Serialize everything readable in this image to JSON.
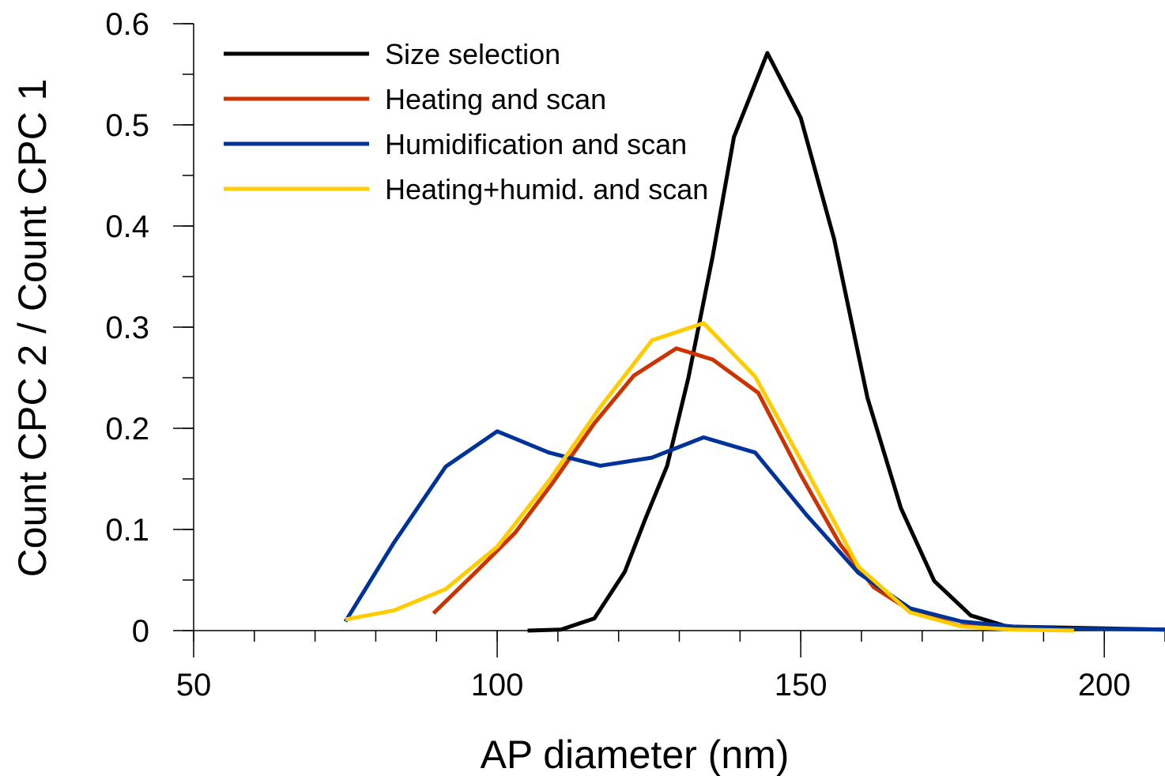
{
  "chart_data": {
    "type": "line",
    "title": "",
    "xlabel": "AP diameter (nm)",
    "ylabel": "Count CPC 2 / Count CPC 1",
    "xlim": [
      50,
      210
    ],
    "ylim": [
      0,
      0.6
    ],
    "x_ticks": [
      50,
      100,
      150,
      200
    ],
    "y_ticks": [
      0,
      0.1,
      0.2,
      0.3,
      0.4,
      0.5,
      0.6
    ],
    "x_minor_step": 10,
    "y_minor_step": 0.05,
    "grid": false,
    "legend_position": "top-left",
    "series": [
      {
        "name": "Size selection",
        "color": "#000000",
        "x": [
          105,
          110.5,
          116,
          121,
          124.5,
          128,
          131.5,
          135.5,
          139,
          144.5,
          150,
          155.5,
          161,
          166.5,
          172,
          178,
          184,
          210
        ],
        "y": [
          0.0,
          0.001,
          0.012,
          0.058,
          0.112,
          0.163,
          0.25,
          0.37,
          0.488,
          0.571,
          0.507,
          0.387,
          0.23,
          0.121,
          0.049,
          0.015,
          0.004,
          0.001
        ]
      },
      {
        "name": "Heating and scan",
        "color": "#CC3300",
        "x": [
          89.5,
          97,
          103,
          109,
          116,
          122.5,
          129.5,
          135.5,
          143,
          150,
          156.5,
          162,
          168,
          176,
          184,
          195
        ],
        "y": [
          0.017,
          0.061,
          0.097,
          0.145,
          0.205,
          0.252,
          0.279,
          0.268,
          0.235,
          0.154,
          0.085,
          0.043,
          0.02,
          0.005,
          0.002,
          0.001
        ]
      },
      {
        "name": "Humidification and scan",
        "color": "#003399",
        "x": [
          75,
          83,
          91.5,
          100,
          108.5,
          117,
          125.5,
          134,
          142.5,
          151,
          159.5,
          168,
          176.5,
          185,
          193,
          210
        ],
        "y": [
          0.009,
          0.087,
          0.162,
          0.197,
          0.176,
          0.163,
          0.171,
          0.191,
          0.176,
          0.114,
          0.057,
          0.022,
          0.009,
          0.004,
          0.002,
          0.001
        ]
      },
      {
        "name": "Heating+humid. and scan",
        "color": "#FFCC00",
        "x": [
          75,
          83,
          91.5,
          100,
          108.5,
          117,
          125.5,
          134,
          142.5,
          151,
          159.5,
          168,
          176.5,
          185,
          195
        ],
        "y": [
          0.011,
          0.02,
          0.041,
          0.083,
          0.148,
          0.221,
          0.287,
          0.304,
          0.251,
          0.158,
          0.063,
          0.018,
          0.004,
          0.001,
          0.0
        ]
      }
    ]
  }
}
